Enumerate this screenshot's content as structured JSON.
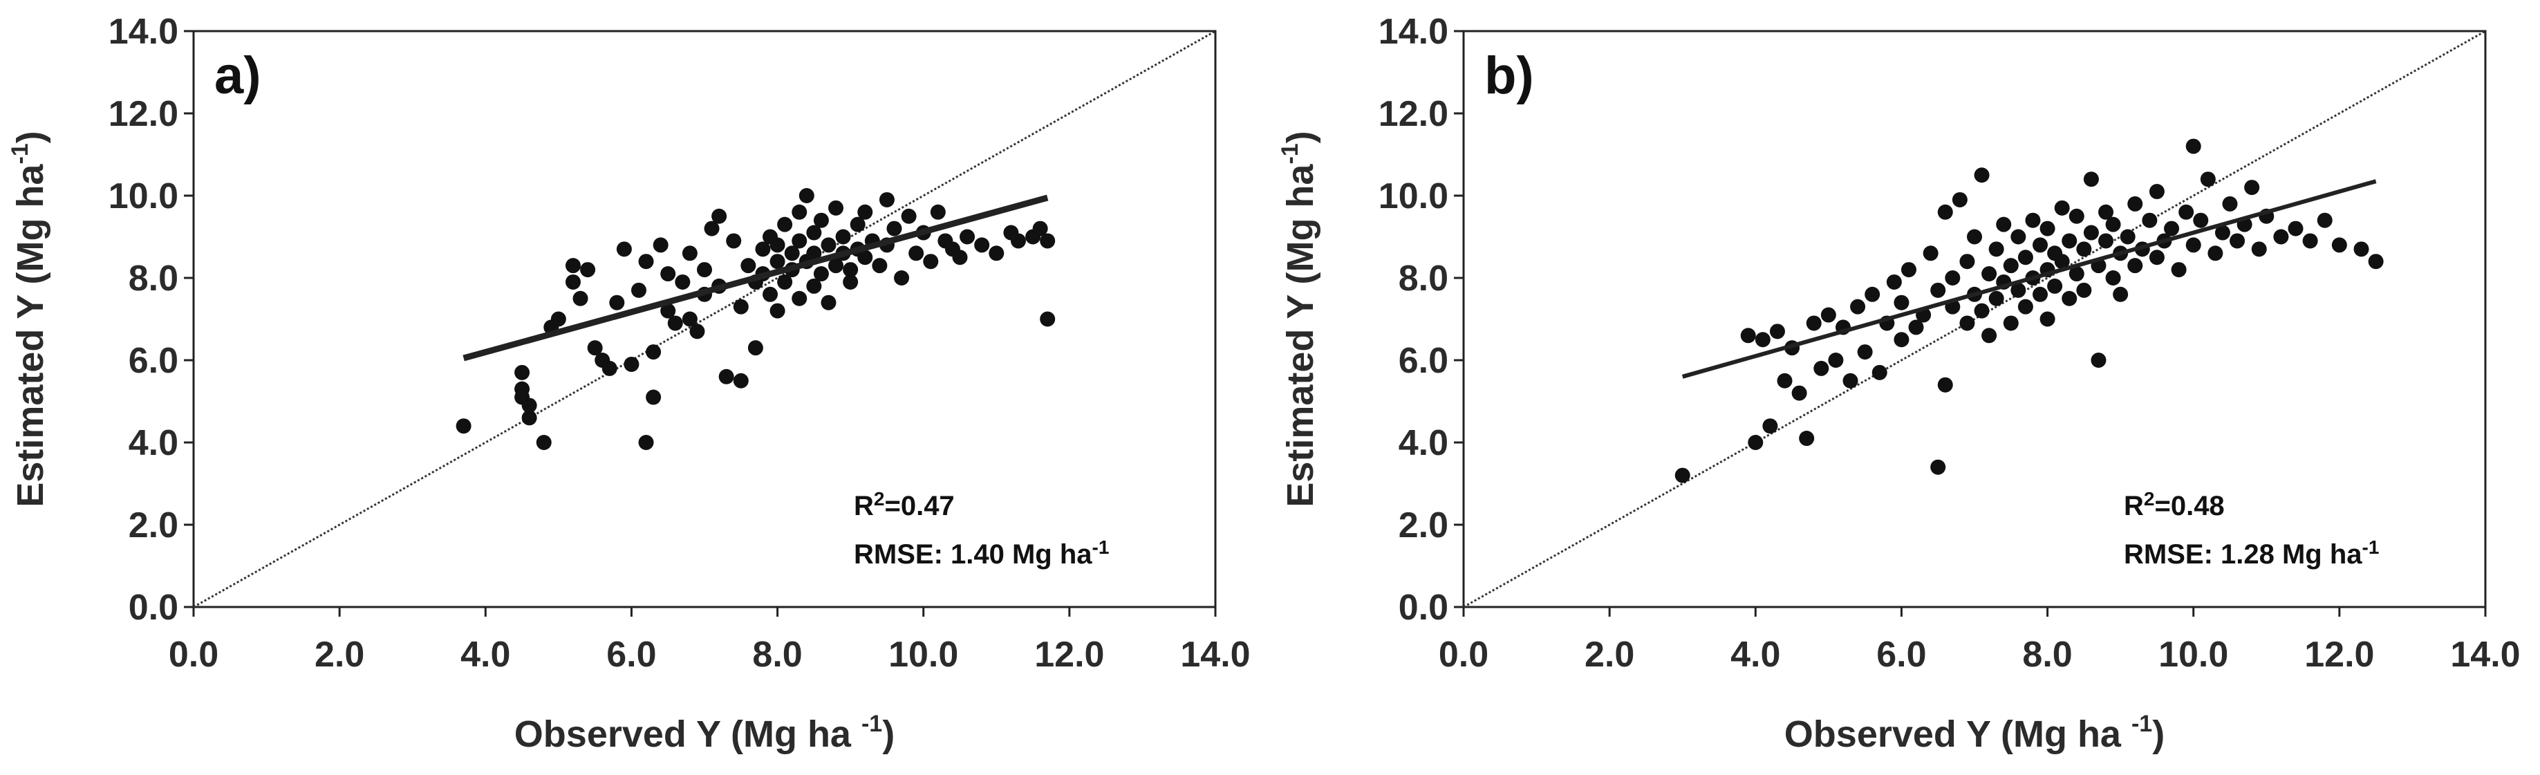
{
  "chart_data": [
    {
      "type": "scatter",
      "panel_label": "a)",
      "xlabel_main": "Observed Y (Mg ha ",
      "xlabel_sup": "-1",
      "xlabel_end": ")",
      "ylabel_main": "Estimated Y (Mg ha",
      "ylabel_sup": "-1",
      "ylabel_end": ")",
      "xlim": [
        0,
        14
      ],
      "ylim": [
        0,
        14
      ],
      "xticks": [
        "0.0",
        "2.0",
        "4.0",
        "6.0",
        "8.0",
        "10.0",
        "12.0",
        "14.0"
      ],
      "yticks": [
        "0.0",
        "2.0",
        "4.0",
        "6.0",
        "8.0",
        "10.0",
        "12.0",
        "14.0"
      ],
      "r2_label": "R",
      "r2_sup": "2",
      "r2_value": "=0.47",
      "rmse_label": "RMSE: 1.40 Mg ha",
      "rmse_sup": "-1",
      "one_to_one": [
        [
          0,
          0
        ],
        [
          14,
          14
        ]
      ],
      "fit_line": [
        [
          3.7,
          6.05
        ],
        [
          11.7,
          9.95
        ]
      ],
      "points": [
        [
          3.7,
          4.4
        ],
        [
          4.5,
          5.7
        ],
        [
          4.5,
          5.3
        ],
        [
          4.5,
          5.1
        ],
        [
          4.6,
          4.9
        ],
        [
          4.6,
          4.6
        ],
        [
          4.8,
          4.0
        ],
        [
          4.9,
          6.8
        ],
        [
          5.0,
          7.0
        ],
        [
          5.2,
          8.3
        ],
        [
          5.2,
          7.9
        ],
        [
          5.3,
          7.5
        ],
        [
          5.4,
          8.2
        ],
        [
          5.5,
          6.3
        ],
        [
          5.6,
          6.0
        ],
        [
          5.7,
          5.8
        ],
        [
          5.8,
          7.4
        ],
        [
          5.9,
          8.7
        ],
        [
          6.0,
          5.9
        ],
        [
          6.1,
          7.7
        ],
        [
          6.2,
          4.0
        ],
        [
          6.2,
          8.4
        ],
        [
          6.3,
          5.1
        ],
        [
          6.3,
          6.2
        ],
        [
          6.4,
          8.8
        ],
        [
          6.5,
          7.2
        ],
        [
          6.5,
          8.1
        ],
        [
          6.6,
          6.9
        ],
        [
          6.7,
          7.9
        ],
        [
          6.8,
          8.6
        ],
        [
          6.8,
          7.0
        ],
        [
          6.9,
          6.7
        ],
        [
          7.0,
          8.2
        ],
        [
          7.0,
          7.6
        ],
        [
          7.1,
          9.2
        ],
        [
          7.2,
          7.8
        ],
        [
          7.2,
          9.5
        ],
        [
          7.3,
          5.6
        ],
        [
          7.4,
          8.9
        ],
        [
          7.5,
          7.3
        ],
        [
          7.5,
          5.5
        ],
        [
          7.6,
          8.3
        ],
        [
          7.7,
          7.9
        ],
        [
          7.7,
          6.3
        ],
        [
          7.8,
          8.7
        ],
        [
          7.8,
          8.1
        ],
        [
          7.9,
          7.6
        ],
        [
          7.9,
          9.0
        ],
        [
          8.0,
          8.4
        ],
        [
          8.0,
          7.2
        ],
        [
          8.0,
          8.8
        ],
        [
          8.1,
          7.9
        ],
        [
          8.1,
          9.3
        ],
        [
          8.2,
          8.2
        ],
        [
          8.2,
          8.6
        ],
        [
          8.3,
          7.5
        ],
        [
          8.3,
          9.6
        ],
        [
          8.3,
          8.9
        ],
        [
          8.4,
          10.0
        ],
        [
          8.4,
          8.4
        ],
        [
          8.5,
          7.8
        ],
        [
          8.5,
          9.1
        ],
        [
          8.5,
          8.6
        ],
        [
          8.6,
          8.1
        ],
        [
          8.6,
          9.4
        ],
        [
          8.7,
          8.8
        ],
        [
          8.7,
          7.4
        ],
        [
          8.8,
          8.3
        ],
        [
          8.8,
          9.7
        ],
        [
          8.9,
          8.6
        ],
        [
          8.9,
          9.0
        ],
        [
          9.0,
          8.2
        ],
        [
          9.0,
          7.9
        ],
        [
          9.1,
          9.3
        ],
        [
          9.1,
          8.7
        ],
        [
          9.2,
          8.5
        ],
        [
          9.2,
          9.6
        ],
        [
          9.3,
          8.9
        ],
        [
          9.4,
          8.3
        ],
        [
          9.5,
          9.9
        ],
        [
          9.5,
          8.8
        ],
        [
          9.6,
          9.2
        ],
        [
          9.7,
          8.0
        ],
        [
          9.8,
          9.5
        ],
        [
          9.9,
          8.6
        ],
        [
          10.0,
          9.1
        ],
        [
          10.1,
          8.4
        ],
        [
          10.2,
          9.6
        ],
        [
          10.3,
          8.9
        ],
        [
          10.4,
          8.7
        ],
        [
          10.5,
          8.5
        ],
        [
          10.6,
          9.0
        ],
        [
          10.8,
          8.8
        ],
        [
          11.0,
          8.6
        ],
        [
          11.2,
          9.1
        ],
        [
          11.3,
          8.9
        ],
        [
          11.5,
          9.0
        ],
        [
          11.6,
          9.2
        ],
        [
          11.7,
          8.9
        ],
        [
          11.7,
          7.0
        ]
      ]
    },
    {
      "type": "scatter",
      "panel_label": "b)",
      "xlabel_main": "Observed Y (Mg ha ",
      "xlabel_sup": "-1",
      "xlabel_end": ")",
      "ylabel_main": "Estimated Y (Mg ha",
      "ylabel_sup": "-1",
      "ylabel_end": ")",
      "xlim": [
        0,
        14
      ],
      "ylim": [
        0,
        14
      ],
      "xticks": [
        "0.0",
        "2.0",
        "4.0",
        "6.0",
        "8.0",
        "10.0",
        "12.0",
        "14.0"
      ],
      "yticks": [
        "0.0",
        "2.0",
        "4.0",
        "6.0",
        "8.0",
        "10.0",
        "12.0",
        "14.0"
      ],
      "r2_label": "R",
      "r2_sup": "2",
      "r2_value": "=0.48",
      "rmse_label": "RMSE: 1.28 Mg ha",
      "rmse_sup": "-1",
      "one_to_one": [
        [
          0,
          0
        ],
        [
          14,
          14
        ]
      ],
      "fit_line": [
        [
          3.0,
          5.6
        ],
        [
          12.5,
          10.35
        ]
      ],
      "points": [
        [
          3.0,
          3.2
        ],
        [
          3.9,
          6.6
        ],
        [
          4.0,
          4.0
        ],
        [
          4.1,
          6.5
        ],
        [
          4.2,
          4.4
        ],
        [
          4.3,
          6.7
        ],
        [
          4.4,
          5.5
        ],
        [
          4.5,
          6.3
        ],
        [
          4.6,
          5.2
        ],
        [
          4.7,
          4.1
        ],
        [
          4.8,
          6.9
        ],
        [
          4.9,
          5.8
        ],
        [
          5.0,
          7.1
        ],
        [
          5.1,
          6.0
        ],
        [
          5.2,
          6.8
        ],
        [
          5.3,
          5.5
        ],
        [
          5.4,
          7.3
        ],
        [
          5.5,
          6.2
        ],
        [
          5.6,
          7.6
        ],
        [
          5.7,
          5.7
        ],
        [
          5.8,
          6.9
        ],
        [
          5.9,
          7.9
        ],
        [
          6.0,
          6.5
        ],
        [
          6.0,
          7.4
        ],
        [
          6.1,
          8.2
        ],
        [
          6.2,
          6.8
        ],
        [
          6.3,
          7.1
        ],
        [
          6.4,
          8.6
        ],
        [
          6.5,
          3.4
        ],
        [
          6.5,
          7.7
        ],
        [
          6.6,
          5.4
        ],
        [
          6.6,
          9.6
        ],
        [
          6.7,
          7.3
        ],
        [
          6.7,
          8.0
        ],
        [
          6.8,
          9.9
        ],
        [
          6.9,
          6.9
        ],
        [
          6.9,
          8.4
        ],
        [
          7.0,
          7.6
        ],
        [
          7.0,
          9.0
        ],
        [
          7.1,
          10.5
        ],
        [
          7.1,
          7.2
        ],
        [
          7.2,
          8.1
        ],
        [
          7.2,
          6.6
        ],
        [
          7.3,
          8.7
        ],
        [
          7.3,
          7.5
        ],
        [
          7.4,
          9.3
        ],
        [
          7.4,
          7.9
        ],
        [
          7.5,
          8.3
        ],
        [
          7.5,
          6.9
        ],
        [
          7.6,
          7.7
        ],
        [
          7.6,
          9.0
        ],
        [
          7.7,
          8.5
        ],
        [
          7.7,
          7.3
        ],
        [
          7.8,
          8.0
        ],
        [
          7.8,
          9.4
        ],
        [
          7.9,
          7.6
        ],
        [
          7.9,
          8.8
        ],
        [
          8.0,
          8.2
        ],
        [
          8.0,
          7.0
        ],
        [
          8.0,
          9.2
        ],
        [
          8.1,
          7.8
        ],
        [
          8.1,
          8.6
        ],
        [
          8.2,
          8.4
        ],
        [
          8.2,
          9.7
        ],
        [
          8.3,
          7.5
        ],
        [
          8.3,
          8.9
        ],
        [
          8.4,
          8.1
        ],
        [
          8.4,
          9.5
        ],
        [
          8.5,
          8.7
        ],
        [
          8.5,
          7.7
        ],
        [
          8.6,
          9.1
        ],
        [
          8.6,
          10.4
        ],
        [
          8.7,
          8.3
        ],
        [
          8.7,
          6.0
        ],
        [
          8.8,
          8.9
        ],
        [
          8.8,
          9.6
        ],
        [
          8.9,
          8.0
        ],
        [
          8.9,
          9.3
        ],
        [
          9.0,
          8.6
        ],
        [
          9.0,
          7.6
        ],
        [
          9.1,
          9.0
        ],
        [
          9.2,
          8.3
        ],
        [
          9.2,
          9.8
        ],
        [
          9.3,
          8.7
        ],
        [
          9.4,
          9.4
        ],
        [
          9.5,
          8.5
        ],
        [
          9.5,
          10.1
        ],
        [
          9.6,
          8.9
        ],
        [
          9.7,
          9.2
        ],
        [
          9.8,
          8.2
        ],
        [
          9.9,
          9.6
        ],
        [
          10.0,
          11.2
        ],
        [
          10.0,
          8.8
        ],
        [
          10.1,
          9.4
        ],
        [
          10.2,
          10.4
        ],
        [
          10.3,
          8.6
        ],
        [
          10.4,
          9.1
        ],
        [
          10.5,
          9.8
        ],
        [
          10.6,
          8.9
        ],
        [
          10.7,
          9.3
        ],
        [
          10.8,
          10.2
        ],
        [
          10.9,
          8.7
        ],
        [
          11.0,
          9.5
        ],
        [
          11.2,
          9.0
        ],
        [
          11.4,
          9.2
        ],
        [
          11.6,
          8.9
        ],
        [
          11.8,
          9.4
        ],
        [
          12.0,
          8.8
        ],
        [
          12.3,
          8.7
        ],
        [
          12.5,
          8.4
        ]
      ]
    }
  ]
}
